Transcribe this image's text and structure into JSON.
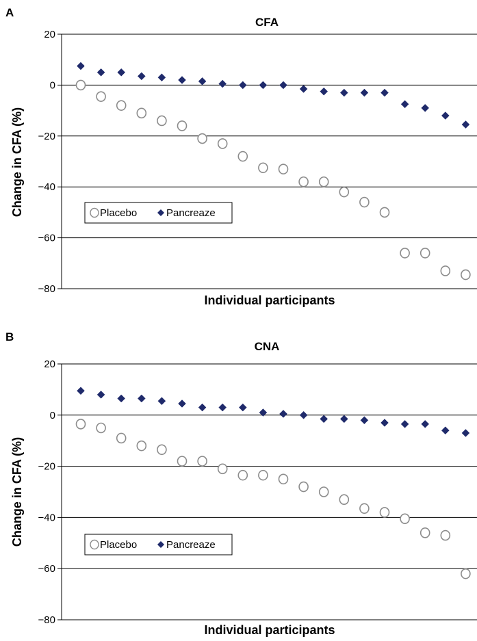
{
  "chart_data": [
    {
      "type": "scatter",
      "panel_label": "A",
      "title": "CFA",
      "xlabel": "Individual participants",
      "ylabel": "Change in CFA (%)",
      "ylim": [
        -80,
        20
      ],
      "yticks": [
        "20",
        "0",
        "−20",
        "−40",
        "−60",
        "−80"
      ],
      "grid": "horizontal",
      "legend": "left",
      "series": [
        {
          "name": "Placebo",
          "marker": "open-circle",
          "color": "#8c8c8c",
          "values": [
            0,
            -4.5,
            -8,
            -11,
            -14,
            -16,
            -21,
            -23,
            -28,
            -32.5,
            -33,
            -38,
            -38,
            -42,
            -46,
            -50,
            -66,
            -66,
            -73,
            -74.5
          ]
        },
        {
          "name": "Pancreaze",
          "marker": "diamond",
          "color": "#1f2a6b",
          "values": [
            7.5,
            5,
            5,
            3.5,
            3,
            2,
            1.5,
            0.5,
            0,
            0,
            0,
            -1.5,
            -2.5,
            -3,
            -3,
            -3,
            -7.5,
            -9,
            -12,
            -15.5
          ]
        }
      ]
    },
    {
      "type": "scatter",
      "panel_label": "B",
      "title": "CNA",
      "xlabel": "Individual participants",
      "ylabel": "Change in CFA (%)",
      "ylim": [
        -80,
        20
      ],
      "yticks": [
        "20",
        "0",
        "−20",
        "−40",
        "−60",
        "−80"
      ],
      "grid": "horizontal",
      "legend": "left",
      "series": [
        {
          "name": "Placebo",
          "marker": "open-circle",
          "color": "#8c8c8c",
          "values": [
            -3.5,
            -5,
            -9,
            -12,
            -13.5,
            -18,
            -18,
            -21,
            -23.5,
            -23.5,
            -25,
            -28,
            -30,
            -33,
            -36.5,
            -38,
            -40.5,
            -46,
            -47,
            -62
          ]
        },
        {
          "name": "Pancreaze",
          "marker": "diamond",
          "color": "#1f2a6b",
          "values": [
            9.5,
            8,
            6.5,
            6.5,
            5.5,
            4.5,
            3,
            3,
            3,
            1,
            0.5,
            0,
            -1.5,
            -1.5,
            -2,
            -3,
            -3.5,
            -3.5,
            -6,
            -7
          ]
        }
      ]
    }
  ]
}
